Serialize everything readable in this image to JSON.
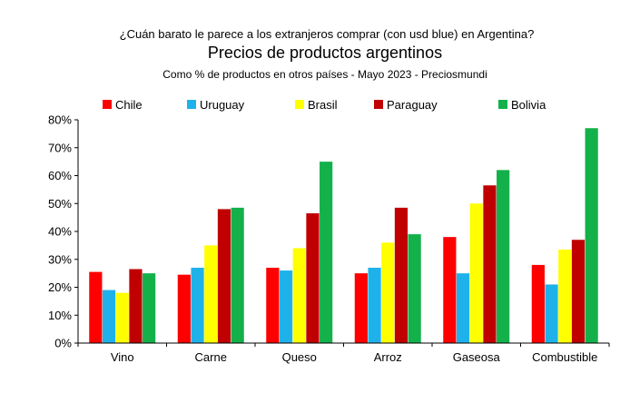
{
  "chart_data": {
    "type": "bar",
    "supertitle": "¿Cuán barato le parece a los extranjeros comprar (con usd blue) en Argentina?",
    "title": "Precios de productos argentinos",
    "subtitle": "Como % de productos en otros países - Mayo 2023 - Preciosmundi",
    "xlabel": "",
    "ylabel": "",
    "ylim": [
      0,
      80
    ],
    "yticks": [
      0,
      10,
      20,
      30,
      40,
      50,
      60,
      70,
      80
    ],
    "ytick_labels": [
      "0%",
      "10%",
      "20%",
      "30%",
      "40%",
      "50%",
      "60%",
      "70%",
      "80%"
    ],
    "legend_position": "top",
    "grid": false,
    "categories": [
      "Vino",
      "Carne",
      "Queso",
      "Arroz",
      "Gaseosa",
      "Combustible"
    ],
    "series": [
      {
        "name": "Chile",
        "color": "#ff0000",
        "values": [
          25.5,
          24.5,
          27,
          25,
          38,
          28
        ]
      },
      {
        "name": "Uruguay",
        "color": "#1fb2ea",
        "values": [
          19,
          27,
          26,
          27,
          25,
          21
        ]
      },
      {
        "name": "Brasil",
        "color": "#ffff00",
        "values": [
          18,
          35,
          34,
          36,
          50,
          33.5
        ]
      },
      {
        "name": "Paraguay",
        "color": "#c00000",
        "values": [
          26.5,
          48,
          46.5,
          48.5,
          56.5,
          37
        ]
      },
      {
        "name": "Bolivia",
        "color": "#14b14a",
        "values": [
          25,
          48.5,
          65,
          39,
          62,
          77
        ]
      }
    ]
  }
}
